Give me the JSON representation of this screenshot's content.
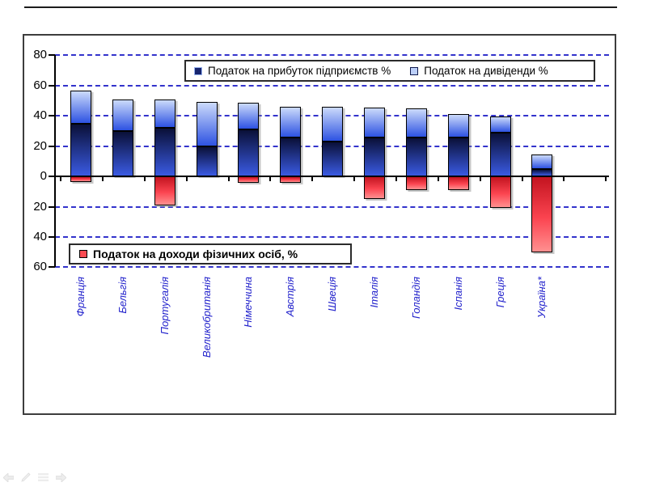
{
  "slide": {
    "background": "#ffffff",
    "top_rule_color": "#1c1c1c"
  },
  "nav": {
    "icons": [
      "previous-slide",
      "pen-tool",
      "slide-menu",
      "next-slide"
    ]
  },
  "chart_data": {
    "type": "bar",
    "stacked": true,
    "title": "",
    "categories": [
      "Франція",
      "Бельгія",
      "Португалія",
      "Великобританія",
      "Німеччина",
      "Австрія",
      "Швеція",
      "Італія",
      "Голандія",
      "Іспанія",
      "Греція",
      "Україна*"
    ],
    "series": [
      {
        "id": "corporate_profit_tax",
        "name": "Податок на прибуток підприємств %",
        "legend": "top",
        "gradient": [
          "#0a1038",
          "#3a5ae2"
        ],
        "marker": {
          "fill": "#17256f",
          "border": "#9ab4f0"
        },
        "values": [
          35,
          30,
          32,
          20,
          31,
          26,
          23,
          26,
          26,
          26,
          29,
          5
        ]
      },
      {
        "id": "dividend_tax",
        "name": "Податок на дивіденди %",
        "legend": "top",
        "gradient": [
          "#cbdafb",
          "#2d52e2"
        ],
        "marker": {
          "fill": "#bccff9",
          "border": "#101a4e"
        },
        "values": [
          22,
          21,
          19,
          29.5,
          17.5,
          20,
          23,
          19.5,
          19,
          15.5,
          10.5,
          9.5
        ]
      },
      {
        "id": "personal_income_tax",
        "name": "Податок на доходи фізичних осіб, %",
        "legend": "bottom",
        "gradient": [
          "#c31420",
          "#fb4450",
          "#ff9090"
        ],
        "marker": {
          "fill": "#fb4b52",
          "border": "#000000"
        },
        "values": [
          -3.5,
          0,
          -19,
          0,
          -4,
          -4,
          0,
          -15,
          -9,
          -9,
          -21,
          -50
        ]
      }
    ],
    "stack_totals_above_zero": [
      57,
      51,
      51,
      49.5,
      48.5,
      46,
      46,
      45.5,
      45,
      41.5,
      39.5,
      14.5
    ],
    "y_axis": {
      "min": -60,
      "max": 80,
      "step": 20,
      "tick_values": [
        80,
        60,
        40,
        20,
        0,
        -20,
        -40,
        -60
      ],
      "tick_labels": [
        "80",
        "60",
        "40",
        "20",
        "0",
        "20",
        "40",
        "60"
      ]
    },
    "grid": {
      "style": "dashed",
      "color": "#3333cc"
    },
    "axis_color": "#000000",
    "category_label_color": "#2323cc",
    "legend_position": {
      "top": "inside-top-right",
      "bottom": "inside-left-below-zero"
    }
  }
}
